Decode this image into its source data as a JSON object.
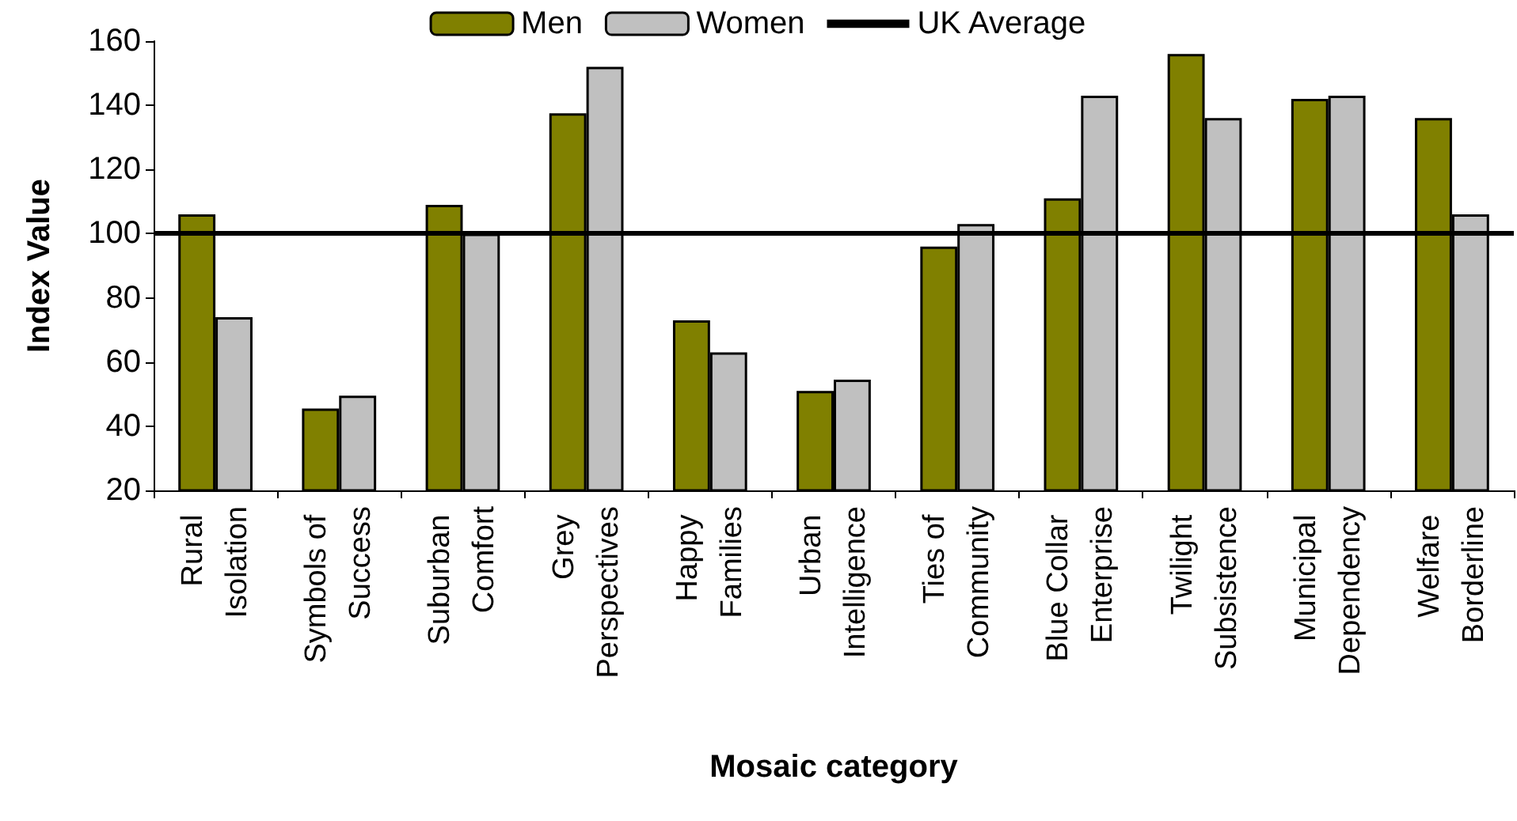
{
  "chart_data": {
    "type": "bar",
    "xlabel": "Mosaic category",
    "ylabel": "Index Value",
    "categories": [
      "Rural Isolation",
      "Symbols of Success",
      "Suburban Comfort",
      "Grey Perspectives",
      "Happy Families",
      "Urban Intelligence",
      "Ties of Community",
      "Blue Collar Enterprise",
      "Twilight Subsistence",
      "Municipal Dependency",
      "Welfare Borderline"
    ],
    "series": [
      {
        "name": "Men",
        "color": "#808000",
        "values": [
          106,
          45.5,
          109,
          137.5,
          73,
          51,
          96,
          111,
          156,
          142,
          136
        ]
      },
      {
        "name": "Women",
        "color": "#c0c0c0",
        "values": [
          74,
          49.5,
          100,
          152,
          63,
          54.5,
          103,
          143,
          136,
          143,
          106
        ]
      }
    ],
    "ref_lines": [
      {
        "axis": "y",
        "value": 100,
        "label": "UK Average",
        "color": "#000000"
      }
    ],
    "ylim": [
      20,
      160
    ],
    "yticks": [
      20,
      40,
      60,
      80,
      100,
      120,
      140,
      160
    ],
    "grid": false,
    "legend": "top"
  }
}
